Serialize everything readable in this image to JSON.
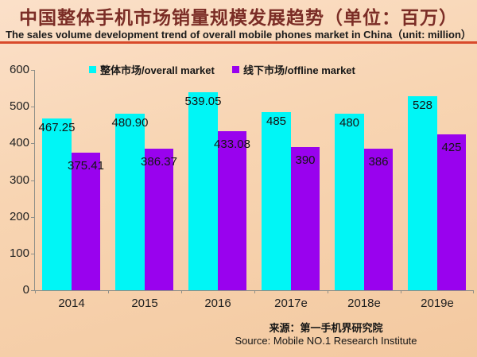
{
  "header": {
    "title_cn": "中国整体手机市场销量规模发展趋势（单位：百万）",
    "subtitle_en": "The sales volume development trend of overall mobile phones market in China（unit: million）"
  },
  "colors": {
    "overall_market": "#00F6F6",
    "offline_market": "#9902EE",
    "divider_red": "#D84A2B",
    "title_maroon": "#7B2D26",
    "background_peach": "#F7D2AF",
    "axis_gray": "#8F8F88"
  },
  "legend": [
    {
      "label": "整体市场/overall market",
      "color": "#00F6F6"
    },
    {
      "label": "线下市场/offline market",
      "color": "#9902EE"
    }
  ],
  "chart_data": {
    "type": "bar",
    "categories": [
      "2014",
      "2015",
      "2016",
      "2017e",
      "2018e",
      "2019e"
    ],
    "series": [
      {
        "name": "整体市场/overall market",
        "color": "#00F6F6",
        "values": [
          467.25,
          480.9,
          539.05,
          485,
          480,
          528
        ],
        "labels": [
          "467.25",
          "480.90",
          "539.05",
          "485",
          "480",
          "528"
        ]
      },
      {
        "name": "线下市场/offline market",
        "color": "#9902EE",
        "values": [
          375.41,
          386.37,
          433.08,
          390,
          386,
          425
        ],
        "labels": [
          "375.41",
          "386.37",
          "433.08",
          "390",
          "386",
          "425"
        ]
      }
    ],
    "title": "中国整体手机市场销量规模发展趋势（单位：百万）",
    "xlabel": "",
    "ylabel": "",
    "ylim": [
      0,
      600
    ],
    "yticks": [
      0,
      100,
      200,
      300,
      400,
      500,
      600
    ],
    "grid": false,
    "legend_position": "top"
  },
  "footer": {
    "source_cn": "来源：第一手机界研究院",
    "source_en": "Source: Mobile NO.1 Research Institute"
  }
}
